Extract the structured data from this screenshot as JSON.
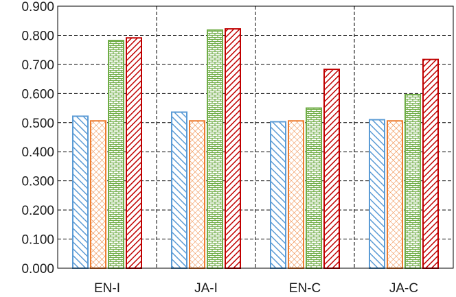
{
  "chart_data": {
    "type": "bar",
    "categories": [
      "EN-I",
      "JA-I",
      "EN-C",
      "JA-C"
    ],
    "series": [
      {
        "values": [
          0.522,
          0.536,
          0.503,
          0.51
        ],
        "color": "#5b9bd5",
        "pattern": "diagonal-backslash"
      },
      {
        "values": [
          0.506,
          0.506,
          0.506,
          0.506
        ],
        "color": "#ed7d31",
        "pattern": "crosshatch"
      },
      {
        "values": [
          0.782,
          0.818,
          0.55,
          0.596
        ],
        "color": "#70ad47",
        "pattern": "brick"
      },
      {
        "values": [
          0.791,
          0.822,
          0.683,
          0.717
        ],
        "color": "#c00000",
        "pattern": "diagonal-slash"
      }
    ],
    "yticks": [
      "0.000",
      "0.100",
      "0.200",
      "0.300",
      "0.400",
      "0.500",
      "0.600",
      "0.700",
      "0.800",
      "0.900"
    ],
    "ylim": [
      0,
      0.9
    ],
    "grid": true,
    "title": "",
    "xlabel": "",
    "ylabel": ""
  }
}
